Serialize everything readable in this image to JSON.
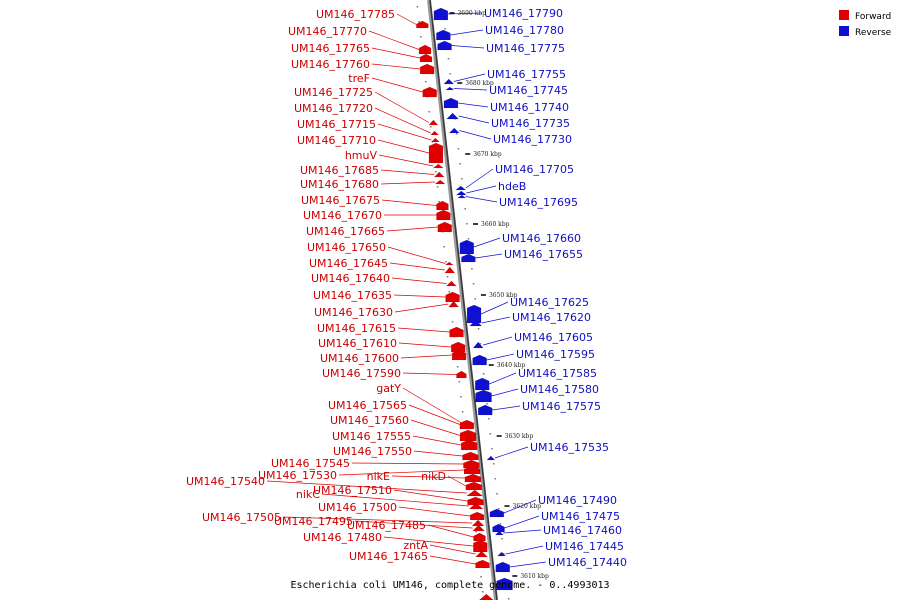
{
  "caption": "Escherichia coli UM146, complete genome. - 0..4993013",
  "legend": [
    {
      "label": "Forward",
      "color": "#e00000"
    },
    {
      "label": "Reverse",
      "color": "#1010d0"
    }
  ],
  "ticks": [
    "3690 kbp",
    "3680 kbp",
    "3670 kbp",
    "3660 kbp",
    "3650 kbp",
    "3640 kbp",
    "3630 kbp",
    "3620 kbp",
    "3610 kbp"
  ],
  "forward_genes": [
    "UM146_17785",
    "UM146_17770",
    "UM146_17765",
    "UM146_17760",
    "treF",
    "UM146_17725",
    "UM146_17720",
    "UM146_17715",
    "UM146_17710",
    "hmuV",
    "UM146_17685",
    "UM146_17680",
    "UM146_17675",
    "UM146_17670",
    "UM146_17665",
    "UM146_17650",
    "UM146_17645",
    "UM146_17640",
    "UM146_17635",
    "UM146_17630",
    "UM146_17615",
    "UM146_17610",
    "UM146_17600",
    "UM146_17590",
    "gatY",
    "UM146_17565",
    "UM146_17560",
    "UM146_17555",
    "UM146_17550",
    "UM146_17545",
    "UM146_17530",
    "nikE",
    "nikD",
    "UM146_17540",
    "UM146_17510",
    "nikC",
    "UM146_17500",
    "UM146_17505",
    "UM146_17495",
    "UM146_17485",
    "UM146_17480",
    "zntA",
    "UM146_17465"
  ],
  "reverse_genes": [
    "UM146_17790",
    "UM146_17780",
    "UM146_17775",
    "UM146_17755",
    "UM146_17745",
    "UM146_17740",
    "UM146_17735",
    "UM146_17730",
    "UM146_17705",
    "hdeB",
    "UM146_17695",
    "UM146_17660",
    "UM146_17655",
    "UM146_17625",
    "UM146_17620",
    "UM146_17605",
    "UM146_17595",
    "UM146_17585",
    "UM146_17580",
    "UM146_17575",
    "UM146_17535",
    "UM146_17490",
    "UM146_17475",
    "UM146_17460",
    "UM146_17445",
    "UM146_17440"
  ]
}
